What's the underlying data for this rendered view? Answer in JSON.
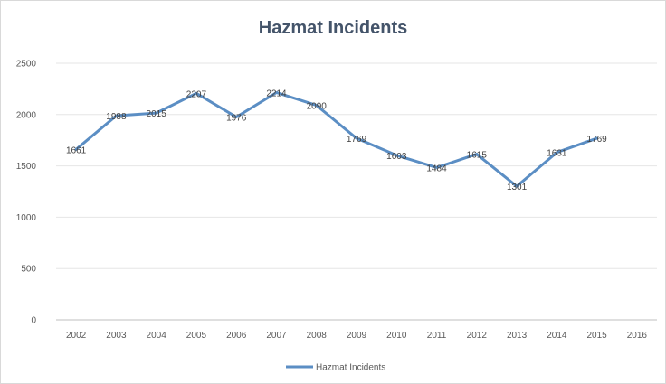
{
  "chart_data": {
    "type": "line",
    "title": "Hazmat Incidents",
    "xlabel": "",
    "ylabel": "",
    "categories": [
      "2002",
      "2003",
      "2004",
      "2005",
      "2006",
      "2007",
      "2008",
      "2009",
      "2010",
      "2011",
      "2012",
      "2013",
      "2014",
      "2015",
      "2016"
    ],
    "series": [
      {
        "name": "Hazmat Incidents",
        "values": [
          1661,
          1988,
          2015,
          2207,
          1976,
          2214,
          2090,
          1769,
          1603,
          1484,
          1615,
          1301,
          1631,
          1769,
          null
        ],
        "color": "#5b8ec4"
      }
    ],
    "ylim": [
      0,
      2500
    ],
    "yticks": [
      0,
      500,
      1000,
      1500,
      2000,
      2500
    ],
    "grid": true,
    "legend": "bottom"
  }
}
